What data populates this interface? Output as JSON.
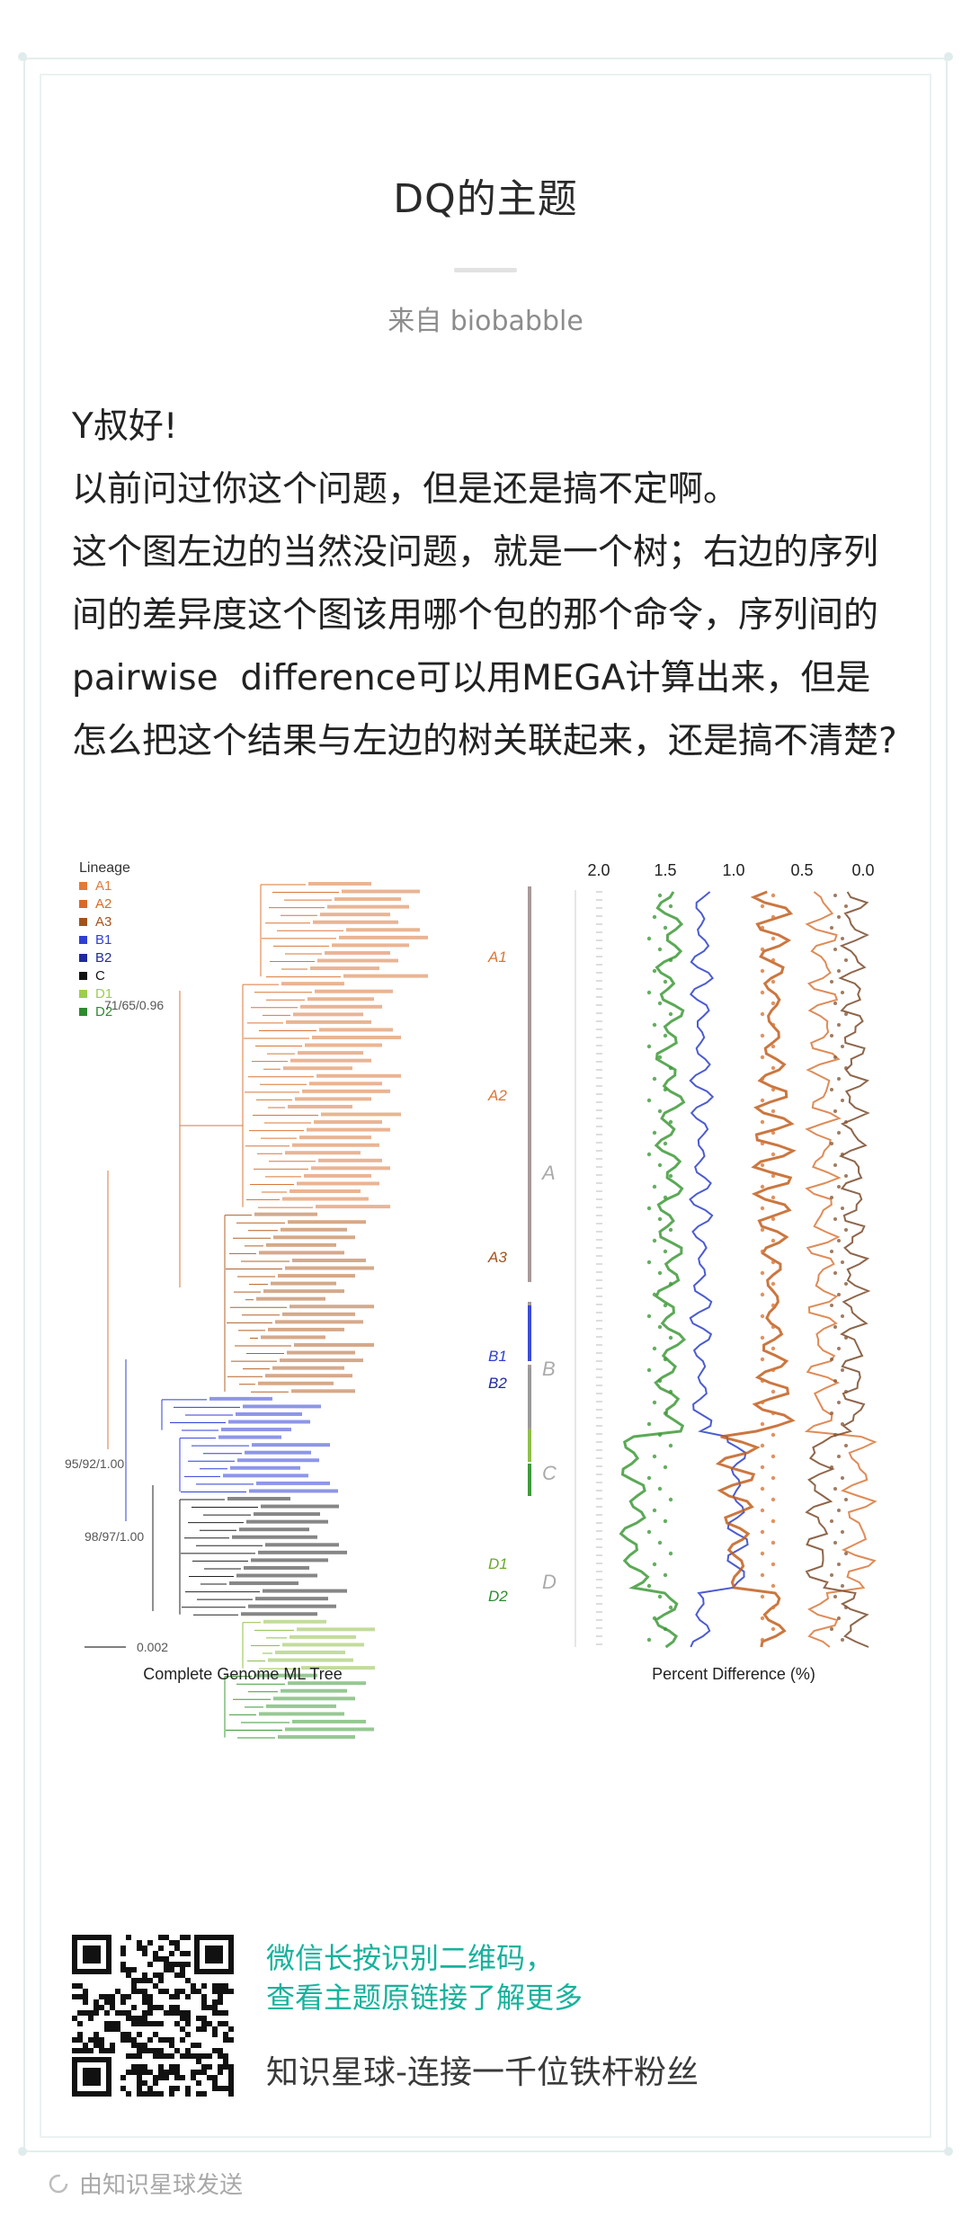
{
  "post": {
    "title": "DQ的主题",
    "byline": "来自 biobabble",
    "paragraphs": [
      "Y叔好!",
      "以前问过你这个问题，但是还是搞不定啊。",
      "这个图左边的当然没问题，就是一个树；右边的序列间的差异度这个图该用哪个包的那个命令，序列间的pairwise  difference可以用MEGA计算出来，但是怎么把这个结果与左边的树关联起来，还是搞不清楚?"
    ]
  },
  "figure": {
    "legend_title": "Lineage",
    "lineages": [
      {
        "label": "A1",
        "color": "#e07b39"
      },
      {
        "label": "A2",
        "color": "#d8692a"
      },
      {
        "label": "A3",
        "color": "#a0521f"
      },
      {
        "label": "B1",
        "color": "#2f3fd6"
      },
      {
        "label": "B2",
        "color": "#1f2a9c"
      },
      {
        "label": "C",
        "color": "#111111"
      },
      {
        "label": "D1",
        "color": "#9ccf4a"
      },
      {
        "label": "D2",
        "color": "#2e8b2e"
      }
    ],
    "clade_labels": [
      "A1",
      "A2",
      "A3",
      "B1",
      "B2",
      "D1",
      "D2"
    ],
    "group_labels": [
      "A",
      "B",
      "C",
      "D"
    ],
    "bootstrap_labels": [
      "71/65/0.96",
      "95/92/1.00",
      "98/97/1.00"
    ],
    "scale_label": "0.002",
    "left_caption": "Complete Genome ML Tree",
    "right_caption": "Percent Difference (%)",
    "axis_ticks": [
      "2.0",
      "1.5",
      "1.0",
      "0.5",
      "0.0"
    ],
    "colors": {
      "orange": "#d9773a",
      "blue": "#2b3ec9",
      "green": "#3f9a3a",
      "gray": "#888888"
    }
  },
  "promo": {
    "qr_caption_line1": "微信长按识别二维码，",
    "qr_caption_line2": "查看主题原链接了解更多",
    "planet_line": "知识星球-连接一千位铁杆粉丝"
  },
  "footer": {
    "sent_from": "由知识星球发送",
    "icon": "loading-ring-icon"
  }
}
